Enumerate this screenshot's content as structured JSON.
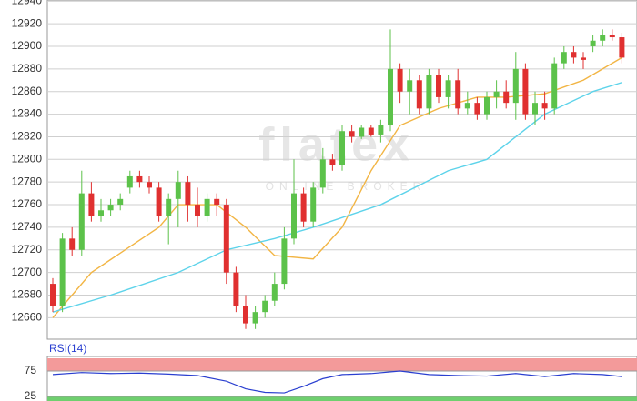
{
  "chart_data": [
    {
      "type": "candlestick",
      "watermark": "flatex",
      "watermark_sub": "ONLINE BROKER",
      "ylim": [
        12641,
        12941
      ],
      "yticks": [
        12660,
        12680,
        12700,
        12720,
        12740,
        12760,
        12780,
        12800,
        12820,
        12840,
        12860,
        12880,
        12900,
        12920,
        12940
      ],
      "grid": true,
      "up_color": "#5cc24a",
      "down_color": "#e03030",
      "open": [
        12690,
        12670,
        12730,
        12720,
        12770,
        12750,
        12755,
        12760,
        12775,
        12785,
        12780,
        12775,
        12750,
        12765,
        12780,
        12760,
        12750,
        12765,
        12760,
        12700,
        12670,
        12655,
        12665,
        12675,
        12690,
        12730,
        12770,
        12745,
        12775,
        12800,
        12795,
        12825,
        12820,
        12828,
        12822,
        12830,
        12880,
        12860,
        12870,
        12845,
        12875,
        12855,
        12870,
        12845,
        12850,
        12840,
        12855,
        12860,
        12850,
        12880,
        12840,
        12850,
        12845,
        12885,
        12895,
        12890,
        12900,
        12905,
        12910,
        12908
      ],
      "high": [
        12695,
        12735,
        12740,
        12790,
        12780,
        12765,
        12765,
        12770,
        12790,
        12790,
        12785,
        12780,
        12770,
        12790,
        12785,
        12775,
        12770,
        12770,
        12765,
        12705,
        12680,
        12670,
        12680,
        12700,
        12740,
        12800,
        12775,
        12780,
        12810,
        12805,
        12830,
        12830,
        12830,
        12830,
        12835,
        12915,
        12885,
        12880,
        12875,
        12880,
        12880,
        12875,
        12880,
        12860,
        12855,
        12860,
        12870,
        12870,
        12895,
        12885,
        12860,
        12860,
        12890,
        12900,
        12900,
        12895,
        12910,
        12915,
        12915,
        12912
      ],
      "low": [
        12665,
        12665,
        12715,
        12715,
        12745,
        12745,
        12750,
        12755,
        12770,
        12775,
        12770,
        12745,
        12725,
        12740,
        12745,
        12740,
        12745,
        12750,
        12690,
        12665,
        12650,
        12650,
        12660,
        12670,
        12685,
        12725,
        12740,
        12740,
        12770,
        12790,
        12790,
        12815,
        12818,
        12820,
        12815,
        12825,
        12850,
        12840,
        12840,
        12840,
        12850,
        12845,
        12840,
        12840,
        12835,
        12835,
        12845,
        12845,
        12835,
        12835,
        12830,
        12835,
        12840,
        12880,
        12885,
        12880,
        12895,
        12900,
        12905,
        12885
      ],
      "close": [
        12670,
        12730,
        12720,
        12770,
        12750,
        12755,
        12760,
        12765,
        12785,
        12780,
        12775,
        12750,
        12765,
        12780,
        12760,
        12750,
        12765,
        12760,
        12700,
        12670,
        12655,
        12665,
        12675,
        12690,
        12730,
        12770,
        12745,
        12775,
        12800,
        12795,
        12825,
        12820,
        12828,
        12822,
        12830,
        12880,
        12860,
        12870,
        12845,
        12875,
        12855,
        12870,
        12845,
        12850,
        12840,
        12855,
        12860,
        12850,
        12880,
        12840,
        12850,
        12845,
        12885,
        12895,
        12890,
        12888,
        12905,
        12910,
        12908,
        12890
      ],
      "ma_lines": [
        {
          "color": "#f2b544",
          "x": [
            0,
            4,
            11,
            13,
            17,
            20,
            23,
            27,
            30,
            33,
            36,
            40,
            44,
            47,
            51,
            55,
            59
          ],
          "values": [
            12660,
            12700,
            12740,
            12760,
            12760,
            12740,
            12715,
            12712,
            12740,
            12790,
            12830,
            12845,
            12855,
            12855,
            12858,
            12870,
            12890
          ]
        },
        {
          "color": "#5dd3ea",
          "x": [
            0,
            6,
            13,
            18,
            23,
            27,
            34,
            41,
            45,
            51,
            56,
            59
          ],
          "values": [
            12665,
            12680,
            12700,
            12720,
            12730,
            12740,
            12760,
            12790,
            12800,
            12840,
            12860,
            12868
          ]
        }
      ]
    },
    {
      "type": "line",
      "title": "RSI(14)",
      "ylim": [
        16,
        100
      ],
      "yticks": [
        75,
        25
      ],
      "overbought_color": "#f39a9a",
      "oversold_color": "#6fcf6f",
      "series": [
        {
          "color": "#2a3fd0",
          "x": [
            0,
            3,
            6,
            9,
            12,
            15,
            18,
            20,
            22,
            24,
            26,
            28,
            30,
            33,
            36,
            39,
            42,
            45,
            48,
            51,
            54,
            57,
            59
          ],
          "values": [
            68,
            72,
            70,
            71,
            69,
            66,
            55,
            40,
            33,
            32,
            45,
            60,
            68,
            70,
            75,
            68,
            66,
            65,
            70,
            64,
            70,
            68,
            64
          ]
        }
      ]
    }
  ]
}
